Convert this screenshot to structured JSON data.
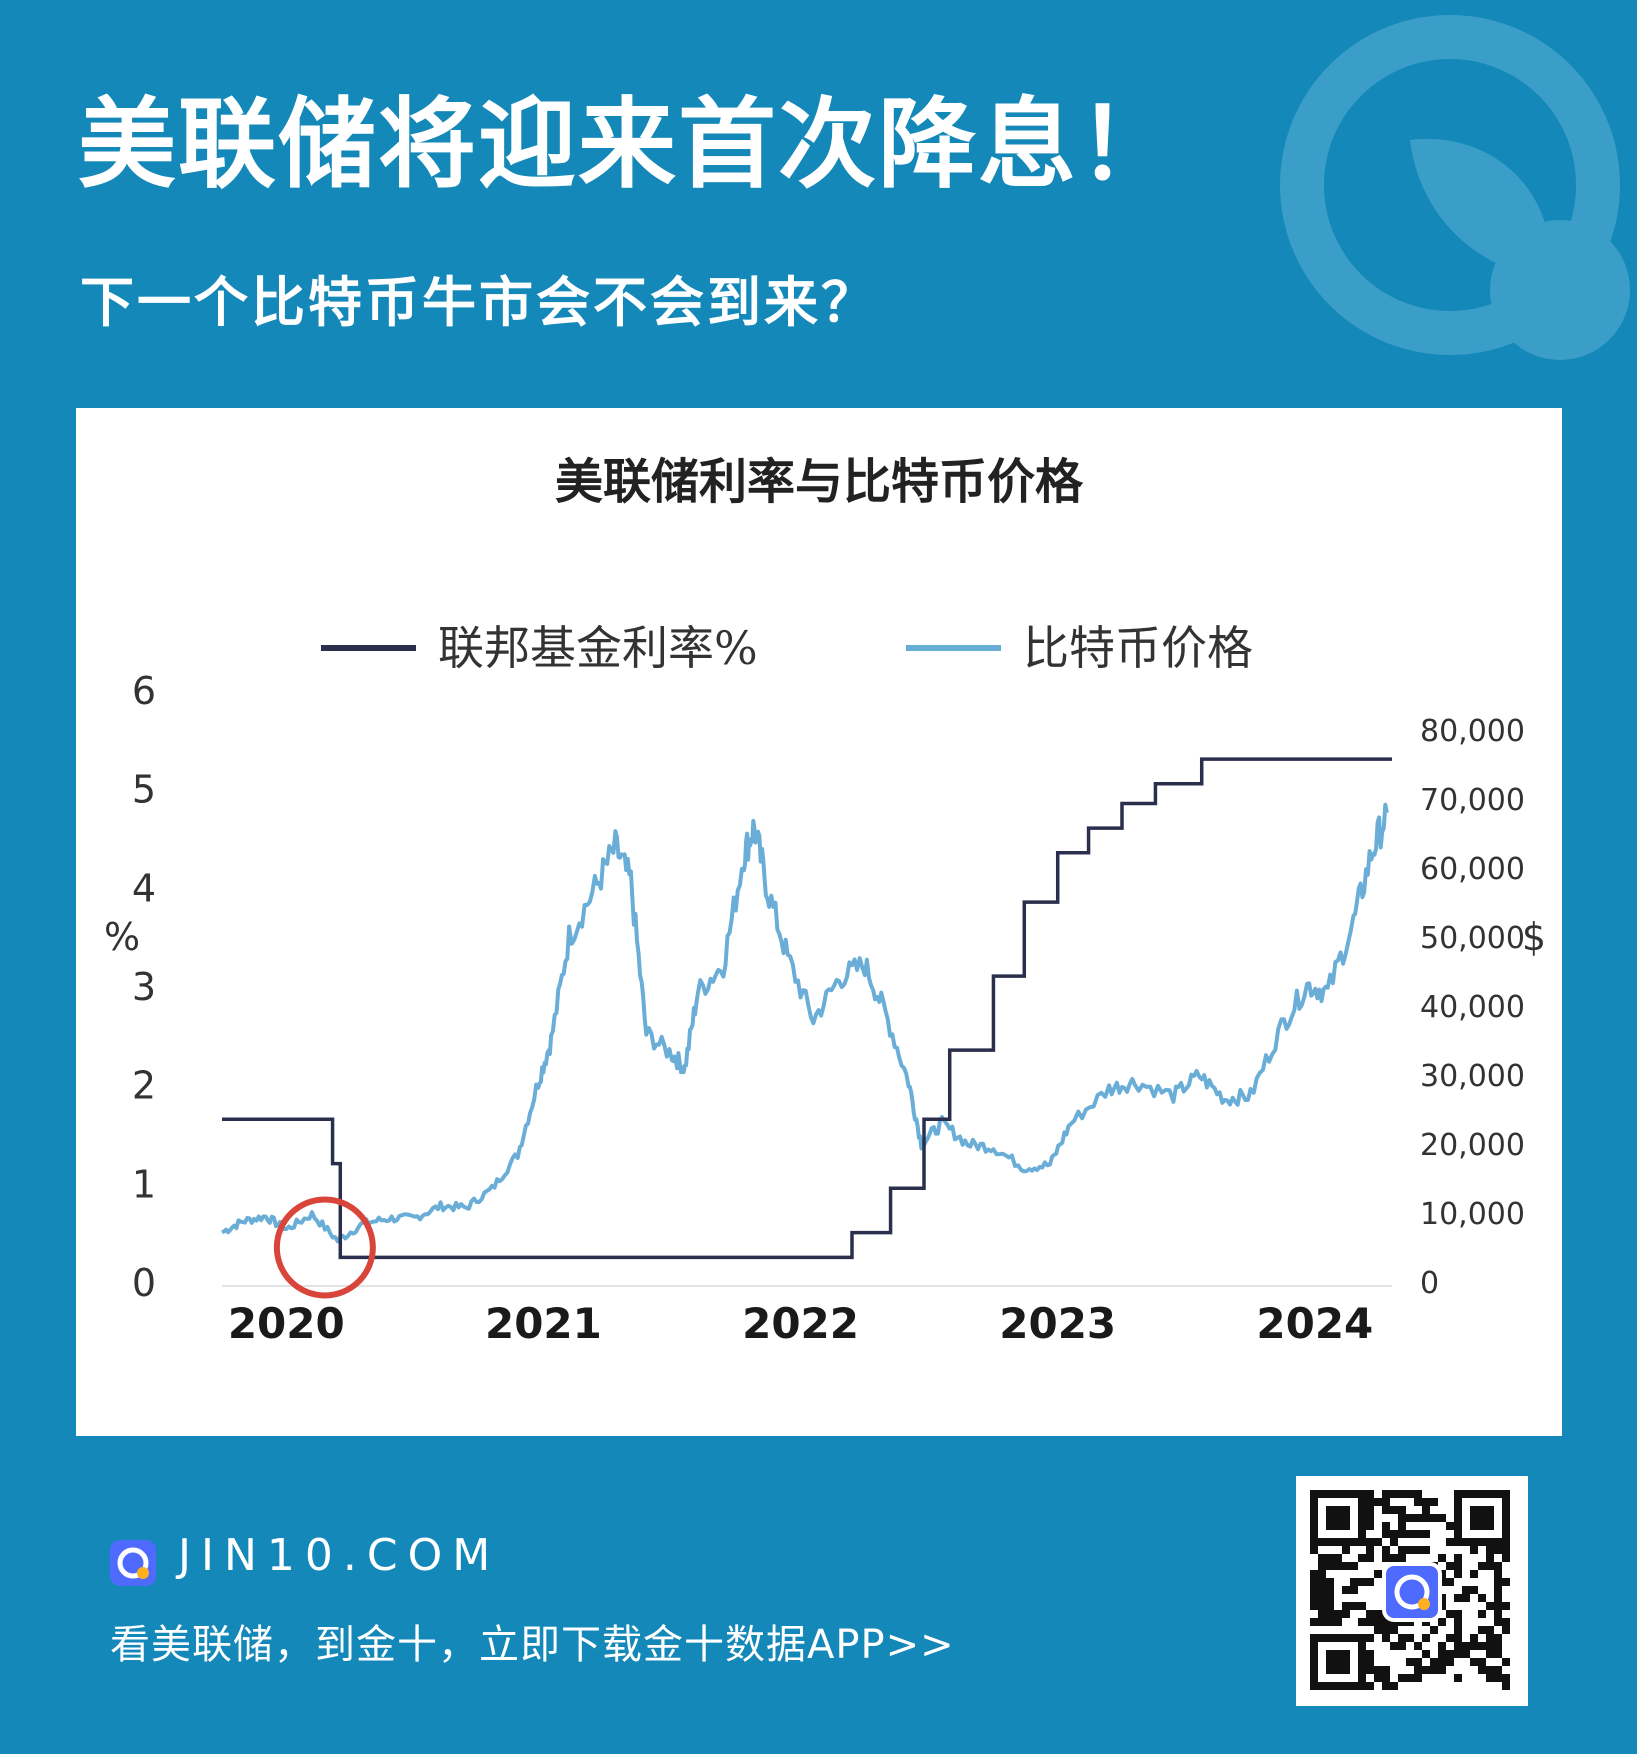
{
  "headline": "美联储将迎来首次降息！",
  "subheadline": "下一个比特币牛市会不会到来？",
  "footer": {
    "site": "JIN10.COM",
    "cta": "看美联储，到金十，立即下载金十数据APP>>"
  },
  "colors": {
    "background": "#1488b8",
    "fed_rate_line": "#2b2f4e",
    "bitcoin_line": "#6aaed8",
    "highlight_circle": "#d9453a"
  },
  "icons": {
    "brand": "jin10-logo-icon",
    "qr": "qr-code"
  },
  "chart_data": {
    "type": "line",
    "title": "美联储利率与比特币价格",
    "ylabel_left": "%",
    "ylabel_right": "$",
    "ylim_left": [
      0,
      6
    ],
    "ylim_right": [
      0,
      80000
    ],
    "yticks_left": [
      "0",
      "1",
      "2",
      "3",
      "4",
      "5",
      "6"
    ],
    "yticks_right": [
      "0",
      "10,000",
      "20,000",
      "30,000",
      "40,000",
      "50,000",
      "60,000",
      "70,000",
      "80,000"
    ],
    "xticks": [
      {
        "label": "2020",
        "x": 2020.0
      },
      {
        "label": "2021",
        "x": 2021.0
      },
      {
        "label": "2022",
        "x": 2022.0
      },
      {
        "label": "2023",
        "x": 2023.0
      },
      {
        "label": "2024",
        "x": 2024.0
      }
    ],
    "xlim": [
      2019.75,
      2024.3
    ],
    "legend_position": "top",
    "annotation": "circle at 2020 rate cut",
    "series": [
      {
        "name": "联邦基金利率%",
        "axis": "left",
        "step": true,
        "points": [
          [
            2019.75,
            1.65
          ],
          [
            2020.18,
            1.2
          ],
          [
            2020.21,
            0.25
          ],
          [
            2022.2,
            0.5
          ],
          [
            2022.35,
            0.95
          ],
          [
            2022.48,
            1.65
          ],
          [
            2022.58,
            2.35
          ],
          [
            2022.75,
            3.1
          ],
          [
            2022.87,
            3.85
          ],
          [
            2023.0,
            4.35
          ],
          [
            2023.12,
            4.6
          ],
          [
            2023.25,
            4.85
          ],
          [
            2023.38,
            5.05
          ],
          [
            2023.56,
            5.3
          ],
          [
            2024.3,
            5.3
          ]
        ]
      },
      {
        "name": "比特币价格",
        "axis": "right",
        "points": [
          [
            2019.75,
            7200
          ],
          [
            2019.83,
            8800
          ],
          [
            2019.92,
            9500
          ],
          [
            2020.0,
            7600
          ],
          [
            2020.1,
            9800
          ],
          [
            2020.2,
            6000
          ],
          [
            2020.3,
            8500
          ],
          [
            2020.4,
            9200
          ],
          [
            2020.5,
            9300
          ],
          [
            2020.6,
            11000
          ],
          [
            2020.7,
            10800
          ],
          [
            2020.8,
            13500
          ],
          [
            2020.9,
            18500
          ],
          [
            2020.98,
            29000
          ],
          [
            2021.03,
            35000
          ],
          [
            2021.1,
            50000
          ],
          [
            2021.2,
            57000
          ],
          [
            2021.28,
            63000
          ],
          [
            2021.34,
            58000
          ],
          [
            2021.4,
            36000
          ],
          [
            2021.5,
            33000
          ],
          [
            2021.55,
            31000
          ],
          [
            2021.6,
            42000
          ],
          [
            2021.7,
            46000
          ],
          [
            2021.78,
            62000
          ],
          [
            2021.82,
            66000
          ],
          [
            2021.87,
            57000
          ],
          [
            2021.95,
            47000
          ],
          [
            2022.05,
            38000
          ],
          [
            2022.15,
            44000
          ],
          [
            2022.25,
            46000
          ],
          [
            2022.33,
            39000
          ],
          [
            2022.42,
            29000
          ],
          [
            2022.47,
            20000
          ],
          [
            2022.55,
            23000
          ],
          [
            2022.65,
            20000
          ],
          [
            2022.75,
            19500
          ],
          [
            2022.87,
            16500
          ],
          [
            2022.97,
            17000
          ],
          [
            2023.05,
            23000
          ],
          [
            2023.2,
            28000
          ],
          [
            2023.3,
            29000
          ],
          [
            2023.45,
            27000
          ],
          [
            2023.55,
            30000
          ],
          [
            2023.65,
            26500
          ],
          [
            2023.75,
            27000
          ],
          [
            2023.87,
            37000
          ],
          [
            2023.97,
            43000
          ],
          [
            2024.05,
            42000
          ],
          [
            2024.15,
            52000
          ],
          [
            2024.22,
            62000
          ],
          [
            2024.28,
            68000
          ]
        ]
      }
    ]
  }
}
